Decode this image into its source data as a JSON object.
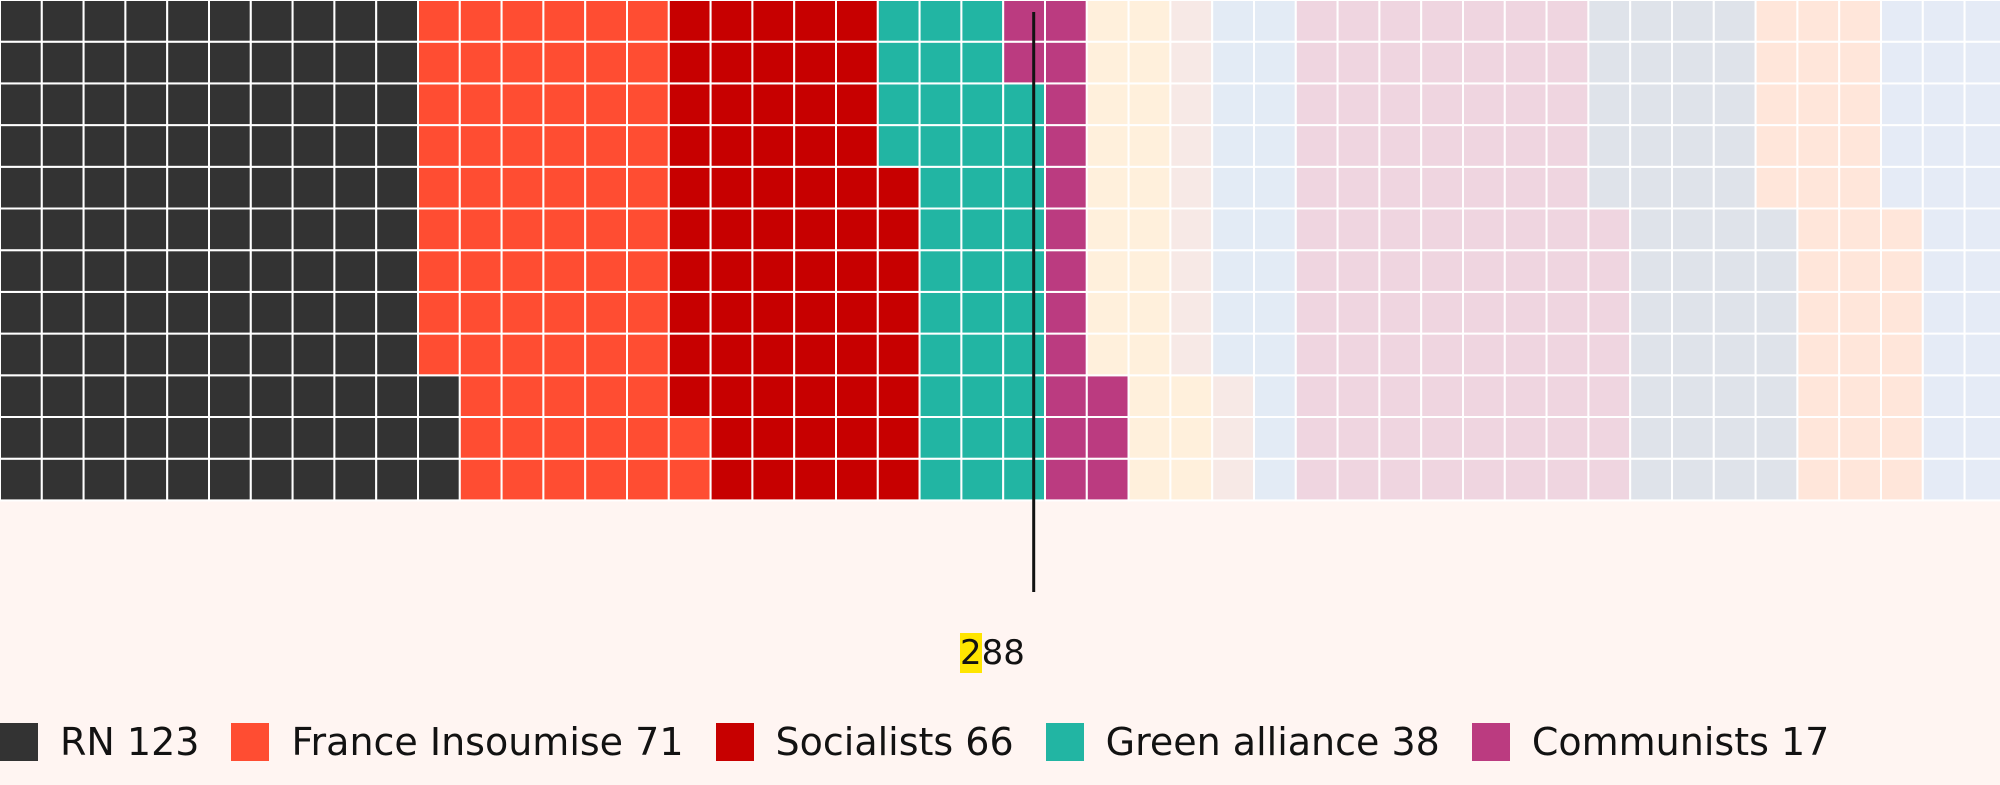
{
  "chart_data": {
    "type": "waffle",
    "title": "",
    "seats_per_column": 12,
    "majority_threshold": 288,
    "majority_label_first": "2",
    "majority_label_rest": "88",
    "series": [
      {
        "name": "RN",
        "value": 123,
        "color": "#333333",
        "highlighted": true,
        "legend": "RN 123"
      },
      {
        "name": "France Insoumise",
        "value": 71,
        "color": "#ff4d32",
        "highlighted": true,
        "legend": "France Insoumise 71"
      },
      {
        "name": "Socialists",
        "value": 66,
        "color": "#c70000",
        "highlighted": true,
        "legend": "Socialists 66"
      },
      {
        "name": "Green alliance",
        "value": 38,
        "color": "#22b5a3",
        "highlighted": true,
        "legend": "Green alliance 38"
      },
      {
        "name": "Communists",
        "value": 17,
        "color": "#bb3b80",
        "highlighted": true,
        "legend": "Communists 17"
      },
      {
        "name": "",
        "value": 24,
        "color": "#fff0dc",
        "highlighted": false
      },
      {
        "name": "",
        "value": 12,
        "color": "#f7e9e6",
        "highlighted": false
      },
      {
        "name": "",
        "value": 21,
        "color": "#e3ebf5",
        "highlighted": false
      },
      {
        "name": "",
        "value": 91,
        "color": "#efd5e0",
        "highlighted": false
      },
      {
        "name": "",
        "value": 48,
        "color": "#dfe3ea",
        "highlighted": false
      },
      {
        "name": "",
        "value": 36,
        "color": "#ffe6da",
        "highlighted": false
      },
      {
        "name": "",
        "value": 31,
        "color": "#e5ebf6",
        "highlighted": false
      }
    ]
  }
}
